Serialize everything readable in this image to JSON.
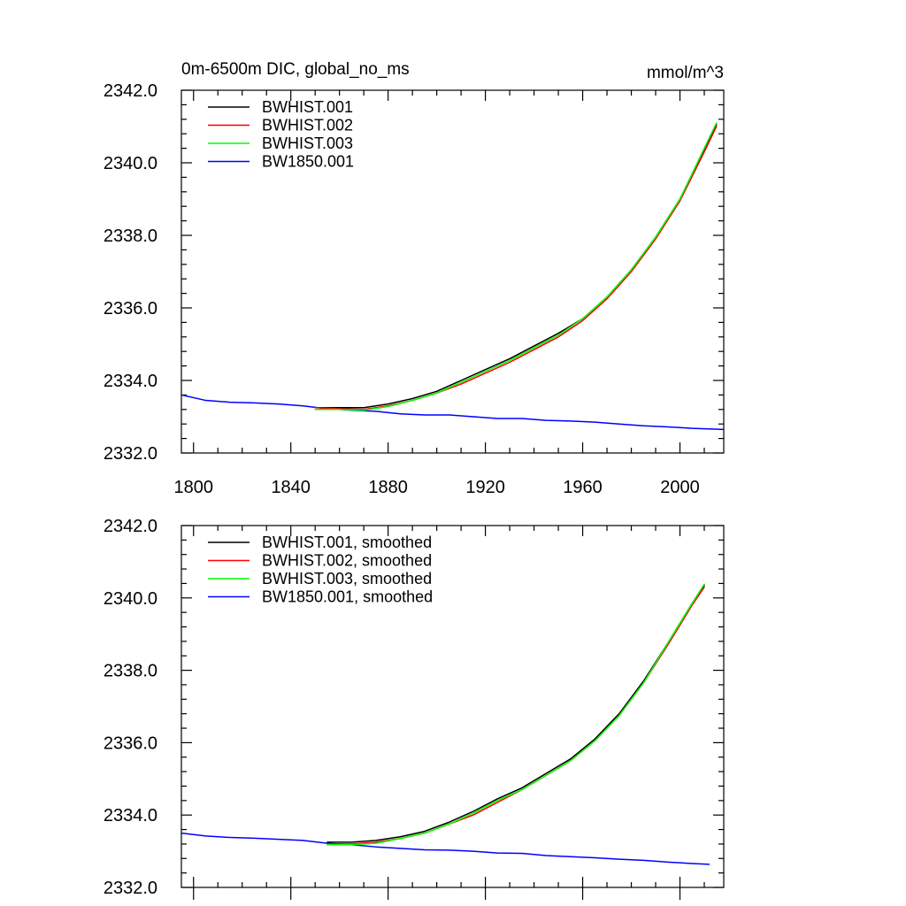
{
  "chart_data": [
    {
      "type": "line",
      "title": "0m-6500m DIC, global_no_ms",
      "units": "mmol/m^3",
      "xlabel": "",
      "ylabel": "",
      "xlim": [
        1795,
        2018
      ],
      "ylim": [
        2332,
        2342
      ],
      "x_ticks": [
        1800,
        1840,
        1880,
        1920,
        1960,
        2000
      ],
      "x_tick_labels": [
        "1800",
        "1840",
        "1880",
        "1920",
        "1960",
        "2000"
      ],
      "y_ticks": [
        2332,
        2334,
        2336,
        2338,
        2340,
        2342
      ],
      "y_tick_labels": [
        "2332.0",
        "2334.0",
        "2336.0",
        "2338.0",
        "2340.0",
        "2342.0"
      ],
      "legend_position": "top-left",
      "series": [
        {
          "name": "BWHIST.001",
          "color": "#000000",
          "x": [
            1850,
            1860,
            1870,
            1880,
            1890,
            1900,
            1910,
            1920,
            1930,
            1940,
            1950,
            1960,
            1970,
            1980,
            1990,
            2000,
            2010,
            2015
          ],
          "y": [
            2333.25,
            2333.25,
            2333.25,
            2333.35,
            2333.5,
            2333.7,
            2334.0,
            2334.3,
            2334.6,
            2334.95,
            2335.3,
            2335.7,
            2336.3,
            2337.05,
            2337.95,
            2339.0,
            2340.35,
            2341.05
          ]
        },
        {
          "name": "BWHIST.002",
          "color": "#ff0000",
          "x": [
            1850,
            1860,
            1870,
            1880,
            1890,
            1900,
            1910,
            1920,
            1930,
            1940,
            1950,
            1960,
            1970,
            1980,
            1990,
            2000,
            2010,
            2015
          ],
          "y": [
            2333.25,
            2333.22,
            2333.2,
            2333.3,
            2333.45,
            2333.65,
            2333.9,
            2334.2,
            2334.5,
            2334.85,
            2335.2,
            2335.65,
            2336.25,
            2337.0,
            2337.9,
            2338.95,
            2340.3,
            2341.0
          ]
        },
        {
          "name": "BWHIST.003",
          "color": "#00ff00",
          "x": [
            1850,
            1860,
            1870,
            1880,
            1890,
            1900,
            1910,
            1920,
            1930,
            1940,
            1950,
            1960,
            1970,
            1980,
            1990,
            2000,
            2010,
            2015
          ],
          "y": [
            2333.2,
            2333.2,
            2333.18,
            2333.28,
            2333.45,
            2333.65,
            2333.95,
            2334.25,
            2334.55,
            2334.9,
            2335.25,
            2335.7,
            2336.3,
            2337.05,
            2337.95,
            2339.0,
            2340.4,
            2341.1
          ]
        },
        {
          "name": "BW1850.001",
          "color": "#0000ff",
          "x": [
            1795,
            1805,
            1815,
            1825,
            1835,
            1845,
            1855,
            1865,
            1875,
            1885,
            1895,
            1905,
            1915,
            1925,
            1935,
            1945,
            1955,
            1965,
            1975,
            1985,
            1995,
            2005,
            2018
          ],
          "y": [
            2333.6,
            2333.45,
            2333.4,
            2333.38,
            2333.35,
            2333.3,
            2333.22,
            2333.18,
            2333.15,
            2333.08,
            2333.05,
            2333.05,
            2333.0,
            2332.95,
            2332.95,
            2332.9,
            2332.88,
            2332.85,
            2332.8,
            2332.75,
            2332.72,
            2332.68,
            2332.65
          ]
        }
      ]
    },
    {
      "type": "line",
      "title": "",
      "units": "",
      "xlabel": "",
      "ylabel": "",
      "xlim": [
        1795,
        2018
      ],
      "ylim": [
        2332,
        2342
      ],
      "x_ticks": [
        1800,
        1840,
        1880,
        1920,
        1960,
        2000
      ],
      "x_tick_labels": [],
      "y_ticks": [
        2332,
        2334,
        2336,
        2338,
        2340,
        2342
      ],
      "y_tick_labels": [
        "2332.0",
        "2334.0",
        "2336.0",
        "2338.0",
        "2340.0",
        "2342.0"
      ],
      "legend_position": "top-left",
      "series": [
        {
          "name": "BWHIST.001, smoothed",
          "color": "#000000",
          "x": [
            1855,
            1865,
            1875,
            1885,
            1895,
            1905,
            1915,
            1925,
            1935,
            1945,
            1955,
            1965,
            1975,
            1985,
            1995,
            2005,
            2010
          ],
          "y": [
            2333.25,
            2333.25,
            2333.3,
            2333.4,
            2333.55,
            2333.8,
            2334.1,
            2334.45,
            2334.75,
            2335.15,
            2335.55,
            2336.1,
            2336.8,
            2337.7,
            2338.75,
            2339.85,
            2340.35
          ]
        },
        {
          "name": "BWHIST.002, smoothed",
          "color": "#ff0000",
          "x": [
            1855,
            1865,
            1875,
            1885,
            1895,
            1905,
            1915,
            1925,
            1935,
            1945,
            1955,
            1965,
            1975,
            1985,
            1995,
            2005,
            2010
          ],
          "y": [
            2333.2,
            2333.2,
            2333.25,
            2333.35,
            2333.5,
            2333.75,
            2334.0,
            2334.35,
            2334.7,
            2335.1,
            2335.5,
            2336.05,
            2336.75,
            2337.65,
            2338.7,
            2339.8,
            2340.3
          ]
        },
        {
          "name": "BWHIST.003, smoothed",
          "color": "#00ff00",
          "x": [
            1855,
            1865,
            1875,
            1885,
            1895,
            1905,
            1915,
            1925,
            1935,
            1945,
            1955,
            1965,
            1975,
            1985,
            1995,
            2005,
            2010
          ],
          "y": [
            2333.18,
            2333.18,
            2333.22,
            2333.35,
            2333.5,
            2333.75,
            2334.05,
            2334.4,
            2334.7,
            2335.1,
            2335.5,
            2336.05,
            2336.75,
            2337.65,
            2338.75,
            2339.85,
            2340.38
          ]
        },
        {
          "name": "BW1850.001, smoothed",
          "color": "#0000ff",
          "x": [
            1795,
            1805,
            1815,
            1825,
            1835,
            1845,
            1855,
            1865,
            1875,
            1885,
            1895,
            1905,
            1915,
            1925,
            1935,
            1945,
            1955,
            1965,
            1975,
            1985,
            1995,
            2005,
            2012
          ],
          "y": [
            2333.5,
            2333.42,
            2333.38,
            2333.36,
            2333.33,
            2333.3,
            2333.22,
            2333.18,
            2333.12,
            2333.08,
            2333.04,
            2333.03,
            2333.0,
            2332.95,
            2332.94,
            2332.88,
            2332.85,
            2332.82,
            2332.78,
            2332.75,
            2332.7,
            2332.66,
            2332.64
          ]
        }
      ]
    }
  ]
}
